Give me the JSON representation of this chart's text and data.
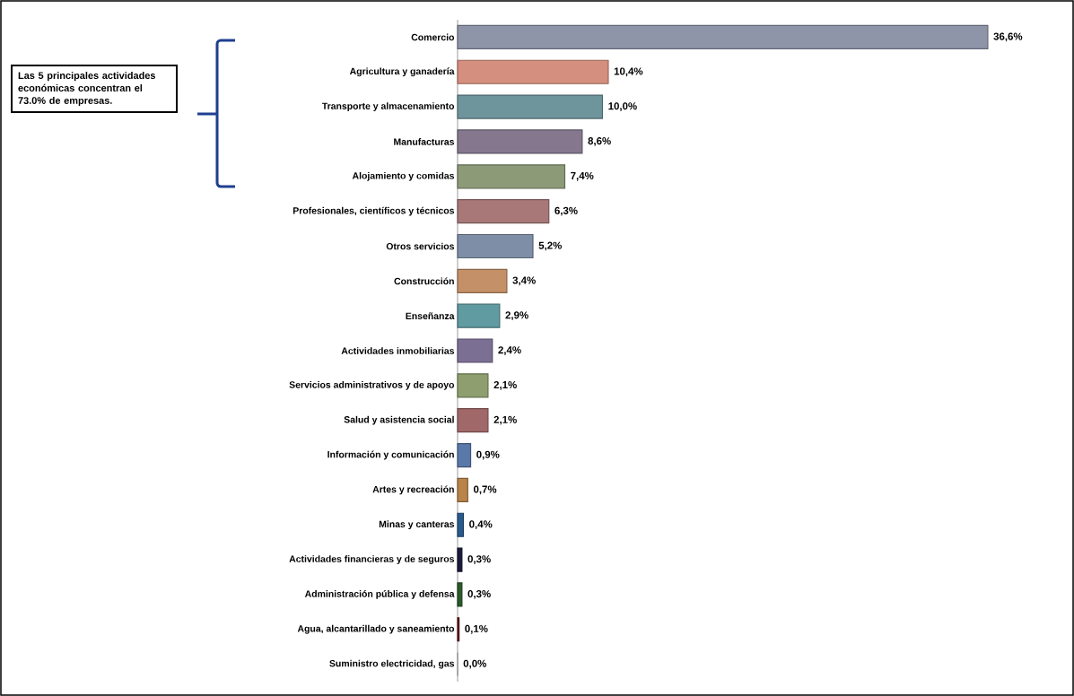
{
  "chart_data": {
    "type": "bar",
    "orientation": "horizontal",
    "categories": [
      "Comercio",
      "Agricultura y ganadería",
      "Transporte y almacenamiento",
      "Manufacturas",
      "Alojamiento y comidas",
      "Profesionales, científicos y técnicos",
      "Otros servicios",
      "Construcción",
      "Enseñanza",
      "Actividades inmobiliarias",
      "Servicios administrativos y de apoyo",
      "Salud y asistencia social",
      "Información y comunicación",
      "Artes y recreación",
      "Minas y canteras",
      "Actividades financieras y de seguros",
      "Administración pública y defensa",
      "Agua, alcantarillado y saneamiento",
      "Suministro electricidad, gas"
    ],
    "values": [
      36.6,
      10.4,
      10.0,
      8.6,
      7.4,
      6.3,
      5.2,
      3.4,
      2.9,
      2.4,
      2.1,
      2.1,
      0.9,
      0.7,
      0.4,
      0.3,
      0.3,
      0.1,
      0.0
    ],
    "value_labels": [
      "36,6%",
      "10,4%",
      "10,0%",
      "8,6%",
      "7,4%",
      "6,3%",
      "5,2%",
      "3,4%",
      "2,9%",
      "2,4%",
      "2,1%",
      "2,1%",
      "0,9%",
      "0,7%",
      "0,4%",
      "0,3%",
      "0,3%",
      "0,1%",
      "0,0%"
    ],
    "colors": [
      "#8e95a8",
      "#d48f7e",
      "#6f959c",
      "#85788e",
      "#8c9a78",
      "#a87878",
      "#7d8ea6",
      "#c49068",
      "#5f9ba0",
      "#7c6f94",
      "#8e9e6e",
      "#a06868",
      "#5a78a8",
      "#b8844a",
      "#2a5a8a",
      "#1a1a3a",
      "#2a5a2a",
      "#6a1a1a",
      "#cccccc"
    ],
    "annotations": [
      "Las 5 principales actividades económicas concentran el 73.0% de empresas."
    ]
  }
}
